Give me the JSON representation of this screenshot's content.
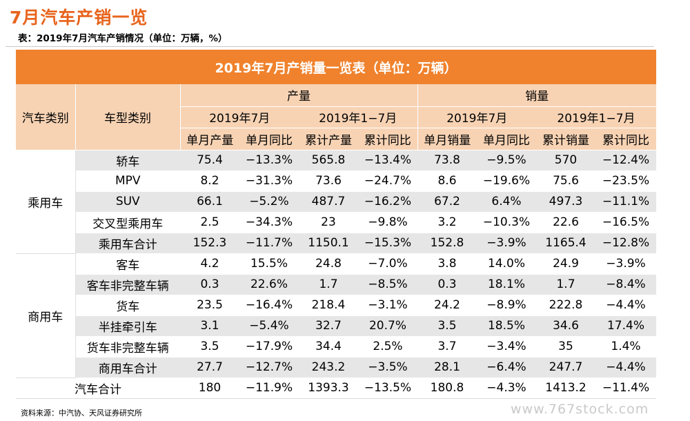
{
  "page_title": "7月汽车产销一览",
  "table_caption": "表：2019年7月汽车产销情况（单位：万辆，%）",
  "banner_title": "2019年7月产销量一览表（单位：万辆）",
  "header": {
    "col_vehicle_category": "汽车类别",
    "col_model_type": "车型类别",
    "production": "产量",
    "sales": "销量",
    "period_month": "2019年7月",
    "period_ytd": "2019年1−7月",
    "prod_month": "单月产量",
    "prod_month_yoy": "单月同比",
    "prod_ytd": "累计产量",
    "prod_ytd_yoy": "累计同比",
    "sales_month": "单月销量",
    "sales_month_yoy": "单月同比",
    "sales_ytd": "累计销量",
    "sales_ytd_yoy": "累计同比"
  },
  "categories": {
    "passenger": "乘用车",
    "commercial": "商用车"
  },
  "rows": [
    {
      "name": "轿车",
      "v": [
        "75.4",
        "−13.3%",
        "565.8",
        "−13.4%",
        "73.8",
        "−9.5%",
        "570",
        "−12.4%"
      ]
    },
    {
      "name": "MPV",
      "v": [
        "8.2",
        "−31.3%",
        "73.6",
        "−24.7%",
        "8.6",
        "−19.6%",
        "75.6",
        "−23.5%"
      ]
    },
    {
      "name": "SUV",
      "v": [
        "66.1",
        "−5.2%",
        "487.7",
        "−16.2%",
        "67.2",
        "6.4%",
        "497.3",
        "−11.1%"
      ]
    },
    {
      "name": "交叉型乘用车",
      "v": [
        "2.5",
        "−34.3%",
        "23",
        "−9.8%",
        "3.2",
        "−10.3%",
        "22.6",
        "−16.5%"
      ]
    },
    {
      "name": "乘用车合计",
      "v": [
        "152.3",
        "−11.7%",
        "1150.1",
        "−15.3%",
        "152.8",
        "−3.9%",
        "1165.4",
        "−12.8%"
      ]
    },
    {
      "name": "客车",
      "v": [
        "4.2",
        "15.5%",
        "24.8",
        "−7.0%",
        "3.8",
        "14.0%",
        "24.9",
        "−3.9%"
      ]
    },
    {
      "name": "客车非完整车辆",
      "v": [
        "0.3",
        "22.6%",
        "1.7",
        "−8.5%",
        "0.3",
        "18.1%",
        "1.7",
        "−8.4%"
      ]
    },
    {
      "name": "货车",
      "v": [
        "23.5",
        "−16.4%",
        "218.4",
        "−3.1%",
        "24.2",
        "−8.9%",
        "222.8",
        "−4.4%"
      ]
    },
    {
      "name": "半挂牵引车",
      "v": [
        "3.1",
        "−5.4%",
        "32.7",
        "20.7%",
        "3.5",
        "18.5%",
        "34.6",
        "17.4%"
      ]
    },
    {
      "name": "货车非完整车辆",
      "v": [
        "3.5",
        "−17.9%",
        "34.4",
        "2.5%",
        "3.7",
        "−3.4%",
        "35",
        "1.4%"
      ]
    },
    {
      "name": "商用车合计",
      "v": [
        "27.7",
        "−12.7%",
        "243.2",
        "−3.5%",
        "28.1",
        "−6.4%",
        "247.7",
        "−4.4%"
      ]
    }
  ],
  "total": {
    "name": "汽车合计",
    "v": [
      "180",
      "−11.9%",
      "1393.3",
      "−13.5%",
      "180.8",
      "−4.3%",
      "1413.2",
      "−11.4%"
    ]
  },
  "source_note": "资料来源：中汽协、天风证券研究所",
  "watermark": "www.767stock.com",
  "colors": {
    "accent": "#e8641d",
    "banner": "#f0822d",
    "header_fill": "#f7d3b4",
    "stripe": "#e6e6e6"
  }
}
